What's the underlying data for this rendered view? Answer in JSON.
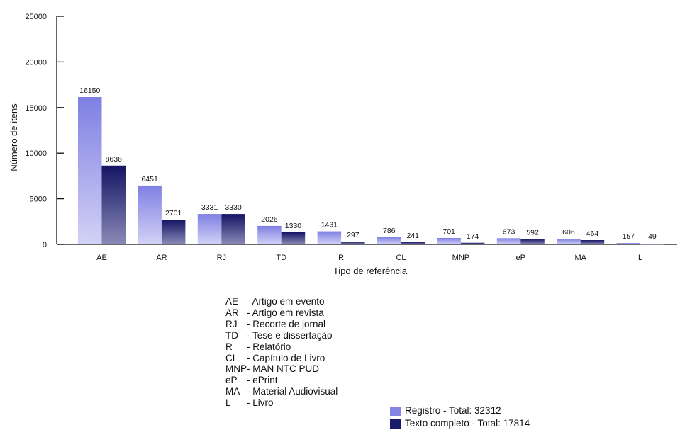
{
  "chart_data": {
    "type": "bar",
    "xlabel": "Tipo de referência",
    "ylabel": "Número de itens",
    "ylim": [
      0,
      25000
    ],
    "yticks": [
      0,
      5000,
      10000,
      15000,
      20000,
      25000
    ],
    "categories": [
      "AE",
      "AR",
      "RJ",
      "TD",
      "R",
      "CL",
      "MNP",
      "eP",
      "MA",
      "L"
    ],
    "series": [
      {
        "name": "Registro - Total: 32312",
        "color": "#8585e6",
        "values": [
          16150,
          6451,
          3331,
          2026,
          1431,
          786,
          701,
          673,
          606,
          157
        ]
      },
      {
        "name": "Texto completo - Total: 17814",
        "color": "#1a1a6b",
        "values": [
          8636,
          2701,
          3330,
          1330,
          297,
          241,
          174,
          592,
          464,
          49
        ]
      }
    ],
    "grid": false,
    "legend_position": "bottom"
  },
  "abbreviations": [
    {
      "code": "AE",
      "desc": "- Artigo em evento"
    },
    {
      "code": "AR",
      "desc": "- Artigo em revista"
    },
    {
      "code": "RJ",
      "desc": "- Recorte de jornal"
    },
    {
      "code": "TD",
      "desc": "- Tese e dissertação"
    },
    {
      "code": "R",
      "desc": "- Relatório"
    },
    {
      "code": "CL",
      "desc": "- Capítulo de Livro"
    },
    {
      "code": "MNP",
      "desc": "- MAN NTC PUD"
    },
    {
      "code": "eP",
      "desc": "- ePrint"
    },
    {
      "code": "MA",
      "desc": "- Material Audiovisual"
    },
    {
      "code": "L",
      "desc": "- Livro"
    }
  ]
}
